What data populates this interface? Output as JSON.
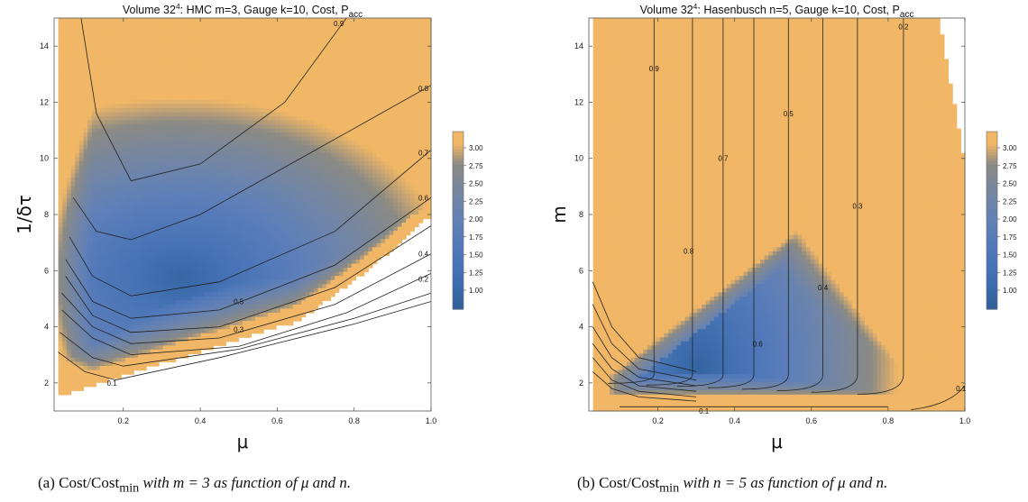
{
  "colors": {
    "scale": [
      "#2f5e98",
      "#3a6aaa",
      "#4673b5",
      "#5279b9",
      "#5e7fb8",
      "#6c84ac",
      "#7a879b",
      "#8b8a84",
      "#f1b766"
    ],
    "orange": "#f1b766",
    "contour": "#222222"
  },
  "chart_data": [
    {
      "type": "contour",
      "title": "Volume 32",
      "title_sup": "4",
      "title_rest": ": HMC m=3, Gauge k=10, Cost, P",
      "title_sub": "acc",
      "xlabel": "μ",
      "ylabel": "1/δτ",
      "xlim": [
        0.02,
        1.0
      ],
      "ylim": [
        1.0,
        15.0
      ],
      "x_ticks": [
        "0.2",
        "0.4",
        "0.6",
        "0.8",
        "1.0"
      ],
      "y_ticks": [
        "2",
        "4",
        "6",
        "8",
        "10",
        "12",
        "14"
      ],
      "colorbar_ticks": [
        "1.00",
        "1.25",
        "1.50",
        "1.75",
        "2.00",
        "2.25",
        "2.50",
        "2.75",
        "3.00"
      ],
      "contour_labels": [
        {
          "text": "0.9",
          "x": 0.76,
          "y": 14.8
        },
        {
          "text": "0.8",
          "x": 0.98,
          "y": 12.5
        },
        {
          "text": "0.7",
          "x": 0.98,
          "y": 10.2
        },
        {
          "text": "0.6",
          "x": 0.98,
          "y": 8.6
        },
        {
          "text": "0.4",
          "x": 0.98,
          "y": 6.6
        },
        {
          "text": "0.2",
          "x": 0.98,
          "y": 5.7
        },
        {
          "text": "0.5",
          "x": 0.5,
          "y": 4.9
        },
        {
          "text": "0.3",
          "x": 0.5,
          "y": 3.9
        },
        {
          "text": "0.1",
          "x": 0.17,
          "y": 2.0
        }
      ],
      "caption_prefix": "(a)",
      "caption_text": "Cost/Cost",
      "caption_sub": "min",
      "caption_rest": " with m = 3 as function of μ and n."
    },
    {
      "type": "contour",
      "title": "Volume 32",
      "title_sup": "4",
      "title_rest": ": Hasenbusch n=5, Gauge k=10, Cost, P",
      "title_sub": "acc",
      "xlabel": "μ",
      "ylabel": "m",
      "xlim": [
        0.02,
        1.0
      ],
      "ylim": [
        1.0,
        15.0
      ],
      "x_ticks": [
        "0.2",
        "0.4",
        "0.6",
        "0.8",
        "1.0"
      ],
      "y_ticks": [
        "2",
        "4",
        "6",
        "8",
        "10",
        "12",
        "14"
      ],
      "colorbar_ticks": [
        "1.00",
        "1.25",
        "1.50",
        "1.75",
        "2.00",
        "2.25",
        "2.50",
        "2.75",
        "3.00"
      ],
      "contour_labels": [
        {
          "text": "0.9",
          "x": 0.19,
          "y": 13.2
        },
        {
          "text": "0.5",
          "x": 0.54,
          "y": 11.6
        },
        {
          "text": "0.7",
          "x": 0.37,
          "y": 10.0
        },
        {
          "text": "0.3",
          "x": 0.72,
          "y": 8.3
        },
        {
          "text": "0.8",
          "x": 0.28,
          "y": 6.7
        },
        {
          "text": "0.4",
          "x": 0.63,
          "y": 5.4
        },
        {
          "text": "0.6",
          "x": 0.46,
          "y": 3.4
        },
        {
          "text": "0.2",
          "x": 0.84,
          "y": 14.7
        },
        {
          "text": "0.1",
          "x": 0.99,
          "y": 1.8
        },
        {
          "text": "0.1",
          "x": 0.32,
          "y": 1.0
        }
      ],
      "caption_prefix": "(b)",
      "caption_text": "Cost/Cost",
      "caption_sub": "min",
      "caption_rest": " with n = 5 as function of μ and n."
    }
  ]
}
